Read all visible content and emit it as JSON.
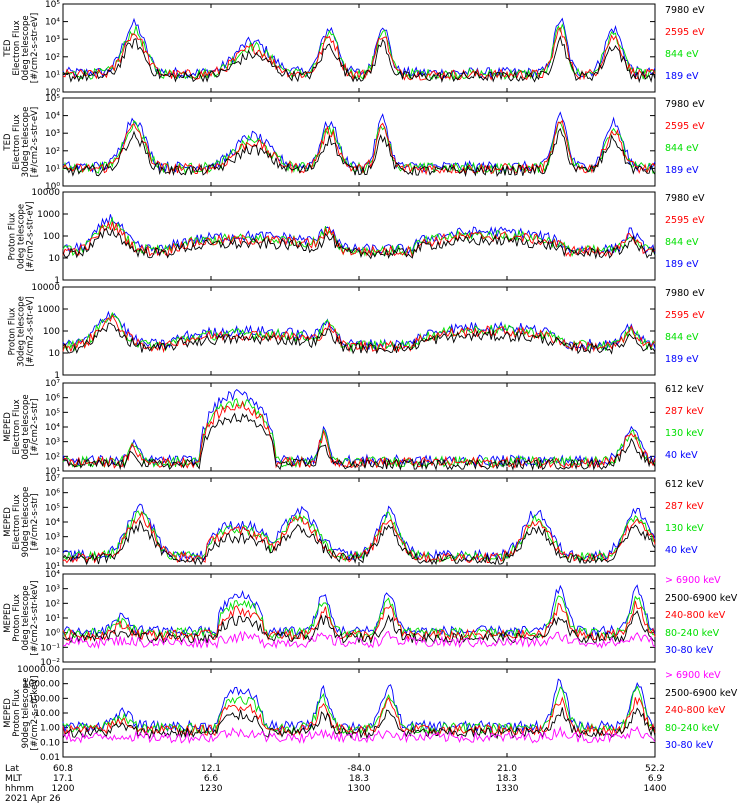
{
  "colors": {
    "blue": "#0000ff",
    "red": "#ff0000",
    "green": "#00e000",
    "black": "#000000",
    "magenta": "#ff00ff"
  },
  "chart_data": [
    {
      "type": "line",
      "panel": 1,
      "ylabel": [
        "TED",
        "Electron Flux",
        "0deg telescope",
        "[#/cm2-s-str-eV]"
      ],
      "ylim": [
        1,
        100000
      ],
      "scale": "log",
      "yticks": [
        "10⁰",
        "10¹",
        "10²",
        "10³",
        "10⁴",
        "10⁵"
      ],
      "legend": [
        "7980 eV",
        "2595 eV",
        "844 eV",
        "189 eV"
      ],
      "series": [
        {
          "name": "7980 eV",
          "color": "black"
        },
        {
          "name": "2595 eV",
          "color": "red"
        },
        {
          "name": "844 eV",
          "color": "green"
        },
        {
          "name": "189 eV",
          "color": "blue"
        }
      ]
    },
    {
      "type": "line",
      "panel": 2,
      "ylabel": [
        "TED",
        "Electron Flux",
        "30deg telescope",
        "[#/cm2-s-str-eV]"
      ],
      "ylim": [
        1,
        100000
      ],
      "scale": "log",
      "yticks": [
        "10⁰",
        "10¹",
        "10²",
        "10³",
        "10⁴",
        "10⁵"
      ],
      "legend": [
        "7980 eV",
        "2595 eV",
        "844 eV",
        "189 eV"
      ]
    },
    {
      "type": "line",
      "panel": 3,
      "ylabel": [
        "Proton Flux",
        "0deg telescope",
        "[#/cm2-s-str-eV]"
      ],
      "ylim": [
        1,
        10000
      ],
      "scale": "log",
      "yticks": [
        "1",
        "10",
        "100",
        "1000",
        "10000"
      ],
      "legend": [
        "7980 eV",
        "2595 eV",
        "844 eV",
        "189 eV"
      ]
    },
    {
      "type": "line",
      "panel": 4,
      "ylabel": [
        "Proton Flux",
        "30deg telescope",
        "[#/cm2-s-str-eV]"
      ],
      "ylim": [
        1,
        10000
      ],
      "scale": "log",
      "yticks": [
        "1",
        "10",
        "100",
        "1000",
        "10000"
      ],
      "legend": [
        "7980 eV",
        "2595 eV",
        "844 eV",
        "189 eV"
      ]
    },
    {
      "type": "line",
      "panel": 5,
      "ylabel": [
        "MEPED",
        "Electron Flux",
        "0deg telescope",
        "[#/cm2-s-str]"
      ],
      "ylim": [
        10,
        10000000
      ],
      "scale": "log",
      "yticks": [
        "10¹",
        "10²",
        "10³",
        "10⁴",
        "10⁵",
        "10⁶",
        "10⁷"
      ],
      "legend": [
        "612 keV",
        "287 keV",
        "130 keV",
        "40 keV"
      ],
      "series": [
        {
          "name": "612 keV",
          "color": "black"
        },
        {
          "name": "287 keV",
          "color": "red"
        },
        {
          "name": "130 keV",
          "color": "green"
        },
        {
          "name": "40 keV",
          "color": "blue"
        }
      ]
    },
    {
      "type": "line",
      "panel": 6,
      "ylabel": [
        "MEPED",
        "Electron Flux",
        "90deg telescope",
        "[#/cm2-s-str]"
      ],
      "ylim": [
        10,
        10000000
      ],
      "scale": "log",
      "yticks": [
        "10¹",
        "10²",
        "10³",
        "10⁴",
        "10⁵",
        "10⁶",
        "10⁷"
      ],
      "legend": [
        "612 keV",
        "287 keV",
        "130 keV",
        "40 keV"
      ]
    },
    {
      "type": "line",
      "panel": 7,
      "ylabel": [
        "MEPED",
        "Proton Flux",
        "0deg telescope",
        "[#/cm2-s-str-keV]"
      ],
      "ylim": [
        0.01,
        10000
      ],
      "scale": "log",
      "yticks": [
        "10⁻²",
        "10⁻¹",
        "10⁰",
        "10¹",
        "10²",
        "10³",
        "10⁴"
      ],
      "legend": [
        "> 6900 keV",
        "2500-6900 keV",
        "240-800 keV",
        "80-240 keV",
        "30-80 keV"
      ],
      "series": [
        {
          "name": "> 6900 keV",
          "color": "magenta"
        },
        {
          "name": "2500-6900 keV",
          "color": "black"
        },
        {
          "name": "240-800 keV",
          "color": "red"
        },
        {
          "name": "80-240 keV",
          "color": "green"
        },
        {
          "name": "30-80 keV",
          "color": "blue"
        }
      ]
    },
    {
      "type": "line",
      "panel": 8,
      "ylabel": [
        "MEPED",
        "Proton Flux",
        "90deg telescope",
        "[#/cm2-s-str-keV]"
      ],
      "ylim": [
        0.01,
        10000
      ],
      "scale": "log",
      "yticks": [
        "0.01",
        "0.10",
        "1.00",
        "10.00",
        "100.00",
        "1000.00",
        "10000.00"
      ],
      "legend": [
        "> 6900 keV",
        "2500-6900 keV",
        "240-800 keV",
        "80-240 keV",
        "30-80 keV"
      ]
    }
  ],
  "x_axis": {
    "row_labels": [
      "Lat",
      "MLT",
      "hhmm"
    ],
    "date": "2021 Apr 26",
    "ticks": [
      {
        "lat": "60.8",
        "mlt": "17.1",
        "hhmm": "1200"
      },
      {
        "lat": "12.1",
        "mlt": "6.6",
        "hhmm": "1230"
      },
      {
        "lat": "-84.0",
        "mlt": "18.3",
        "hhmm": "1300"
      },
      {
        "lat": "21.0",
        "mlt": "18.3",
        "hhmm": "1330"
      },
      {
        "lat": "52.2",
        "mlt": "6.9",
        "hhmm": "1400"
      }
    ]
  }
}
